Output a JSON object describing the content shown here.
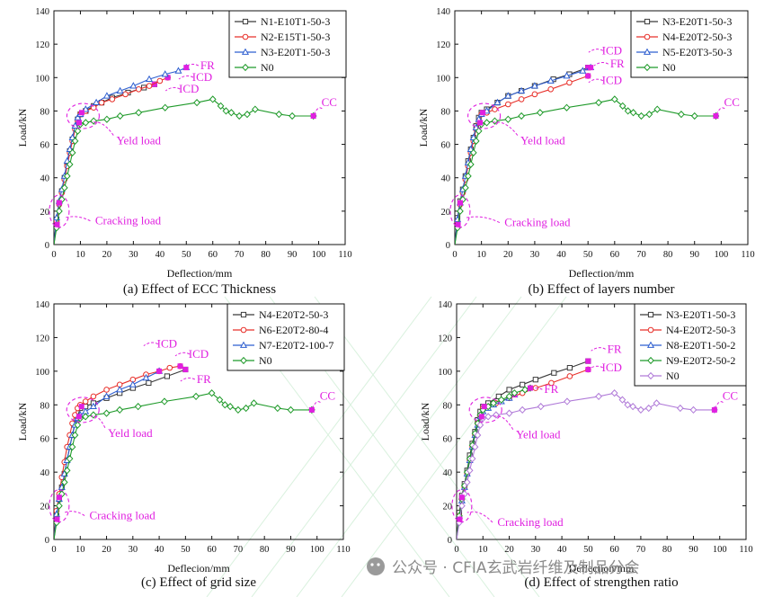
{
  "figure_title": "Four-panel load-deflection comparison",
  "watermark": {
    "text": "公众号 · CFIA玄武岩纤维及制品分会",
    "icon": "wechat-icon"
  },
  "colors": {
    "black": "#3a3a3a",
    "red": "#e8302a",
    "blue": "#2f5fd0",
    "green": "#1f9a2a",
    "purple": "#b07ad8",
    "magenta": "#e020e0",
    "axis": "#111111"
  },
  "chart_data": [
    {
      "type": "line",
      "panel": "a",
      "caption": "(a) Effect of ECC Thickness",
      "xlabel": "Deflection/mm",
      "ylabel": "Load/kN",
      "xlim": [
        0,
        110
      ],
      "ylim": [
        0,
        140
      ],
      "xticks": [
        0,
        10,
        20,
        30,
        40,
        50,
        60,
        70,
        80,
        90,
        100,
        110
      ],
      "yticks": [
        0,
        20,
        40,
        60,
        80,
        100,
        120,
        140
      ],
      "legend_position": "top-right",
      "series": [
        {
          "name": "N1-E10T1-50-3",
          "color": "#3a3a3a",
          "marker": "square",
          "x": [
            0,
            1,
            2,
            3,
            4,
            5,
            6,
            7,
            8,
            9,
            10,
            12,
            15,
            18,
            22,
            28,
            34,
            38
          ],
          "y": [
            0,
            15,
            25,
            32,
            40,
            48,
            56,
            63,
            70,
            75,
            78,
            80,
            83,
            85,
            88,
            91,
            94,
            96
          ]
        },
        {
          "name": "N2-E15T1-50-3",
          "color": "#e8302a",
          "marker": "circle",
          "x": [
            0,
            1,
            2,
            3,
            4,
            5,
            6,
            7,
            8,
            9,
            10,
            12,
            15,
            18,
            22,
            27,
            32,
            36,
            40,
            43
          ],
          "y": [
            0,
            14,
            24,
            31,
            39,
            47,
            55,
            62,
            69,
            74,
            78,
            80,
            82,
            85,
            87,
            90,
            93,
            95,
            98,
            100
          ]
        },
        {
          "name": "N3-E20T1-50-3",
          "color": "#2f5fd0",
          "marker": "triangle",
          "x": [
            0,
            1,
            2,
            3,
            4,
            5,
            6,
            7,
            8,
            9,
            10,
            12,
            16,
            20,
            25,
            30,
            36,
            42,
            47,
            50
          ],
          "y": [
            0,
            16,
            26,
            33,
            41,
            50,
            57,
            64,
            71,
            76,
            78,
            81,
            85,
            89,
            92,
            95,
            99,
            102,
            104,
            106
          ]
        },
        {
          "name": "N0",
          "color": "#1f9a2a",
          "marker": "diamond",
          "x": [
            0,
            1,
            2,
            3,
            4,
            5,
            6,
            7,
            8,
            9,
            10,
            12,
            15,
            20,
            25,
            32,
            42,
            54,
            60,
            63,
            65,
            67,
            70,
            73,
            76,
            85,
            90,
            98
          ],
          "y": [
            0,
            10,
            20,
            27,
            34,
            41,
            48,
            55,
            62,
            68,
            72,
            73,
            74,
            75,
            77,
            79,
            82,
            85,
            87,
            83,
            80,
            79,
            77,
            78,
            81,
            78,
            77,
            77
          ]
        }
      ],
      "annotations": [
        {
          "text": "FR",
          "x": 58,
          "y": 105
        },
        {
          "text": "ICD",
          "x": 56,
          "y": 98
        },
        {
          "text": "ICD",
          "x": 51,
          "y": 91
        },
        {
          "text": "CC",
          "x": 104,
          "y": 83
        },
        {
          "text": "Yeld load",
          "x": 32,
          "y": 60
        },
        {
          "text": "Cracking load",
          "x": 28,
          "y": 12
        }
      ]
    },
    {
      "type": "line",
      "panel": "b",
      "caption": "(b) Effect of layers number",
      "xlabel": "Deflection/mm",
      "ylabel": "Load/kN",
      "xlim": [
        0,
        110
      ],
      "ylim": [
        0,
        140
      ],
      "xticks": [
        0,
        10,
        20,
        30,
        40,
        50,
        60,
        70,
        80,
        90,
        100,
        110
      ],
      "yticks": [
        0,
        20,
        40,
        60,
        80,
        100,
        120,
        140
      ],
      "legend_position": "top-right",
      "series": [
        {
          "name": "N3-E20T1-50-3",
          "color": "#3a3a3a",
          "marker": "square",
          "x": [
            0,
            1,
            2,
            3,
            4,
            5,
            6,
            7,
            8,
            9,
            10,
            12,
            16,
            20,
            25,
            30,
            37,
            43,
            50
          ],
          "y": [
            0,
            16,
            26,
            33,
            41,
            50,
            57,
            64,
            71,
            76,
            79,
            81,
            85,
            89,
            92,
            95,
            99,
            102,
            106
          ]
        },
        {
          "name": "N4-E20T2-50-3",
          "color": "#e8302a",
          "marker": "circle",
          "x": [
            0,
            1,
            2,
            3,
            4,
            5,
            6,
            7,
            8,
            9,
            10,
            12,
            15,
            20,
            25,
            30,
            36,
            43,
            50
          ],
          "y": [
            0,
            14,
            24,
            31,
            39,
            47,
            55,
            62,
            69,
            73,
            78,
            79,
            81,
            84,
            87,
            90,
            93,
            97,
            101
          ]
        },
        {
          "name": "N5-E20T3-50-3",
          "color": "#2f5fd0",
          "marker": "triangle",
          "x": [
            0,
            1,
            2,
            3,
            4,
            5,
            6,
            7,
            8,
            9,
            10,
            12,
            16,
            20,
            25,
            30,
            36,
            42,
            48,
            51
          ],
          "y": [
            0,
            15,
            25,
            33,
            41,
            49,
            57,
            64,
            70,
            75,
            78,
            80,
            85,
            89,
            92,
            95,
            98,
            101,
            104,
            106
          ]
        },
        {
          "name": "N0",
          "color": "#1f9a2a",
          "marker": "diamond",
          "x": [
            0,
            1,
            2,
            3,
            4,
            5,
            6,
            7,
            8,
            9,
            10,
            12,
            15,
            20,
            25,
            32,
            42,
            54,
            60,
            63,
            65,
            67,
            70,
            73,
            76,
            85,
            90,
            98
          ],
          "y": [
            0,
            10,
            20,
            27,
            34,
            41,
            48,
            55,
            62,
            68,
            72,
            73,
            74,
            75,
            77,
            79,
            82,
            85,
            87,
            83,
            80,
            79,
            77,
            78,
            81,
            78,
            77,
            77
          ]
        }
      ],
      "annotations": [
        {
          "text": "ICD",
          "x": 59,
          "y": 114
        },
        {
          "text": "FR",
          "x": 61,
          "y": 106
        },
        {
          "text": "ICD",
          "x": 59,
          "y": 96
        },
        {
          "text": "CC",
          "x": 104,
          "y": 83
        },
        {
          "text": "Yeld load",
          "x": 33,
          "y": 60
        },
        {
          "text": "Cracking load",
          "x": 31,
          "y": 11
        }
      ]
    },
    {
      "type": "line",
      "panel": "c",
      "caption": "(c) Effect of grid size",
      "xlabel": "Deflecion/mm",
      "ylabel": "Load/kN",
      "xlim": [
        0,
        110
      ],
      "ylim": [
        0,
        140
      ],
      "xticks": [
        0,
        10,
        20,
        30,
        40,
        50,
        60,
        70,
        80,
        90,
        100,
        110
      ],
      "yticks": [
        0,
        20,
        40,
        60,
        80,
        100,
        120,
        140
      ],
      "legend_position": "top-right",
      "series": [
        {
          "name": "N4-E20T2-50-3",
          "color": "#3a3a3a",
          "marker": "square",
          "x": [
            0,
            1,
            2,
            3,
            4,
            5,
            6,
            7,
            8,
            9,
            10,
            12,
            15,
            20,
            25,
            30,
            36,
            43,
            50
          ],
          "y": [
            0,
            14,
            24,
            31,
            39,
            47,
            55,
            62,
            69,
            73,
            78,
            79,
            81,
            84,
            87,
            90,
            93,
            97,
            101
          ]
        },
        {
          "name": "N6-E20T2-80-4",
          "color": "#e8302a",
          "marker": "circle",
          "x": [
            0,
            1,
            2,
            3,
            4,
            5,
            6,
            7,
            8,
            9,
            10,
            12,
            15,
            20,
            25,
            30,
            35,
            40,
            44,
            48
          ],
          "y": [
            0,
            17,
            27,
            37,
            46,
            55,
            62,
            69,
            74,
            78,
            80,
            82,
            85,
            89,
            92,
            95,
            98,
            100,
            102,
            103
          ]
        },
        {
          "name": "N7-E20T2-100-7",
          "color": "#2f5fd0",
          "marker": "triangle",
          "x": [
            0,
            1,
            2,
            3,
            4,
            5,
            6,
            7,
            8,
            9,
            10,
            12,
            15,
            20,
            25,
            30,
            35,
            40
          ],
          "y": [
            0,
            15,
            24,
            31,
            39,
            47,
            55,
            62,
            68,
            72,
            74,
            76,
            79,
            85,
            89,
            92,
            96,
            100
          ]
        },
        {
          "name": "N0",
          "color": "#1f9a2a",
          "marker": "diamond",
          "x": [
            0,
            1,
            2,
            3,
            4,
            5,
            6,
            7,
            8,
            9,
            10,
            12,
            15,
            20,
            25,
            32,
            42,
            54,
            60,
            63,
            65,
            67,
            70,
            73,
            76,
            85,
            90,
            98
          ],
          "y": [
            0,
            10,
            20,
            27,
            34,
            41,
            48,
            55,
            62,
            68,
            72,
            73,
            74,
            75,
            77,
            79,
            82,
            85,
            87,
            83,
            80,
            79,
            77,
            78,
            81,
            78,
            77,
            77
          ]
        }
      ],
      "annotations": [
        {
          "text": "ICD",
          "x": 43,
          "y": 114
        },
        {
          "text": "ICD",
          "x": 55,
          "y": 108
        },
        {
          "text": "FR",
          "x": 57,
          "y": 93
        },
        {
          "text": "CC",
          "x": 104,
          "y": 83
        },
        {
          "text": "Yeld load",
          "x": 29,
          "y": 61
        },
        {
          "text": "Cracking load",
          "x": 26,
          "y": 12
        }
      ]
    },
    {
      "type": "line",
      "panel": "d",
      "caption": "(d) Effect of strengthen ratio",
      "xlabel": "Deflection/mm",
      "ylabel": "Load/kN",
      "xlim": [
        0,
        110
      ],
      "ylim": [
        0,
        140
      ],
      "xticks": [
        0,
        10,
        20,
        30,
        40,
        50,
        60,
        70,
        80,
        90,
        100,
        110
      ],
      "yticks": [
        0,
        20,
        40,
        60,
        80,
        100,
        120,
        140
      ],
      "legend_position": "top-right",
      "series": [
        {
          "name": "N3-E20T1-50-3",
          "color": "#3a3a3a",
          "marker": "square",
          "x": [
            0,
            1,
            2,
            3,
            4,
            5,
            6,
            7,
            8,
            9,
            10,
            12,
            16,
            20,
            25,
            30,
            37,
            43,
            50
          ],
          "y": [
            0,
            16,
            26,
            33,
            41,
            50,
            57,
            64,
            71,
            76,
            79,
            81,
            85,
            89,
            92,
            95,
            99,
            102,
            106
          ]
        },
        {
          "name": "N4-E20T2-50-3",
          "color": "#e8302a",
          "marker": "circle",
          "x": [
            0,
            1,
            2,
            3,
            4,
            5,
            6,
            7,
            8,
            9,
            10,
            12,
            15,
            20,
            25,
            30,
            36,
            43,
            50
          ],
          "y": [
            0,
            14,
            24,
            31,
            39,
            47,
            55,
            62,
            69,
            73,
            78,
            79,
            81,
            84,
            87,
            90,
            93,
            97,
            101
          ]
        },
        {
          "name": "N8-E20T1-50-2",
          "color": "#2f5fd0",
          "marker": "triangle",
          "x": [
            0,
            1,
            2,
            3,
            4,
            5,
            6,
            7,
            8,
            9,
            10,
            12,
            14,
            17,
            20,
            22
          ],
          "y": [
            0,
            14,
            23,
            31,
            39,
            47,
            55,
            62,
            68,
            73,
            76,
            78,
            80,
            82,
            84,
            86
          ]
        },
        {
          "name": "N9-E20T2-50-2",
          "color": "#1f9a2a",
          "marker": "diamond",
          "x": [
            0,
            1,
            2,
            3,
            4,
            5,
            6,
            7,
            8,
            9,
            10,
            12,
            14,
            17,
            20,
            22,
            26,
            28
          ],
          "y": [
            0,
            14,
            24,
            32,
            40,
            48,
            56,
            63,
            69,
            74,
            77,
            79,
            81,
            83,
            85,
            87,
            89,
            90
          ]
        },
        {
          "name": "N0",
          "color": "#b07ad8",
          "marker": "diamond",
          "x": [
            0,
            1,
            2,
            3,
            4,
            5,
            6,
            7,
            8,
            9,
            10,
            12,
            15,
            20,
            25,
            32,
            42,
            54,
            60,
            63,
            65,
            67,
            70,
            73,
            76,
            85,
            90,
            98
          ],
          "y": [
            0,
            10,
            20,
            27,
            34,
            41,
            48,
            55,
            62,
            68,
            72,
            73,
            74,
            75,
            77,
            79,
            82,
            85,
            87,
            83,
            80,
            79,
            77,
            78,
            81,
            78,
            77,
            77
          ]
        }
      ],
      "annotations": [
        {
          "text": "FR",
          "x": 60,
          "y": 111
        },
        {
          "text": "ICD",
          "x": 59,
          "y": 100
        },
        {
          "text": "FR",
          "x": 36,
          "y": 87
        },
        {
          "text": "CC",
          "x": 104,
          "y": 83
        },
        {
          "text": "Yeld load",
          "x": 31,
          "y": 60
        },
        {
          "text": "Cracking load",
          "x": 28,
          "y": 8
        }
      ]
    }
  ]
}
